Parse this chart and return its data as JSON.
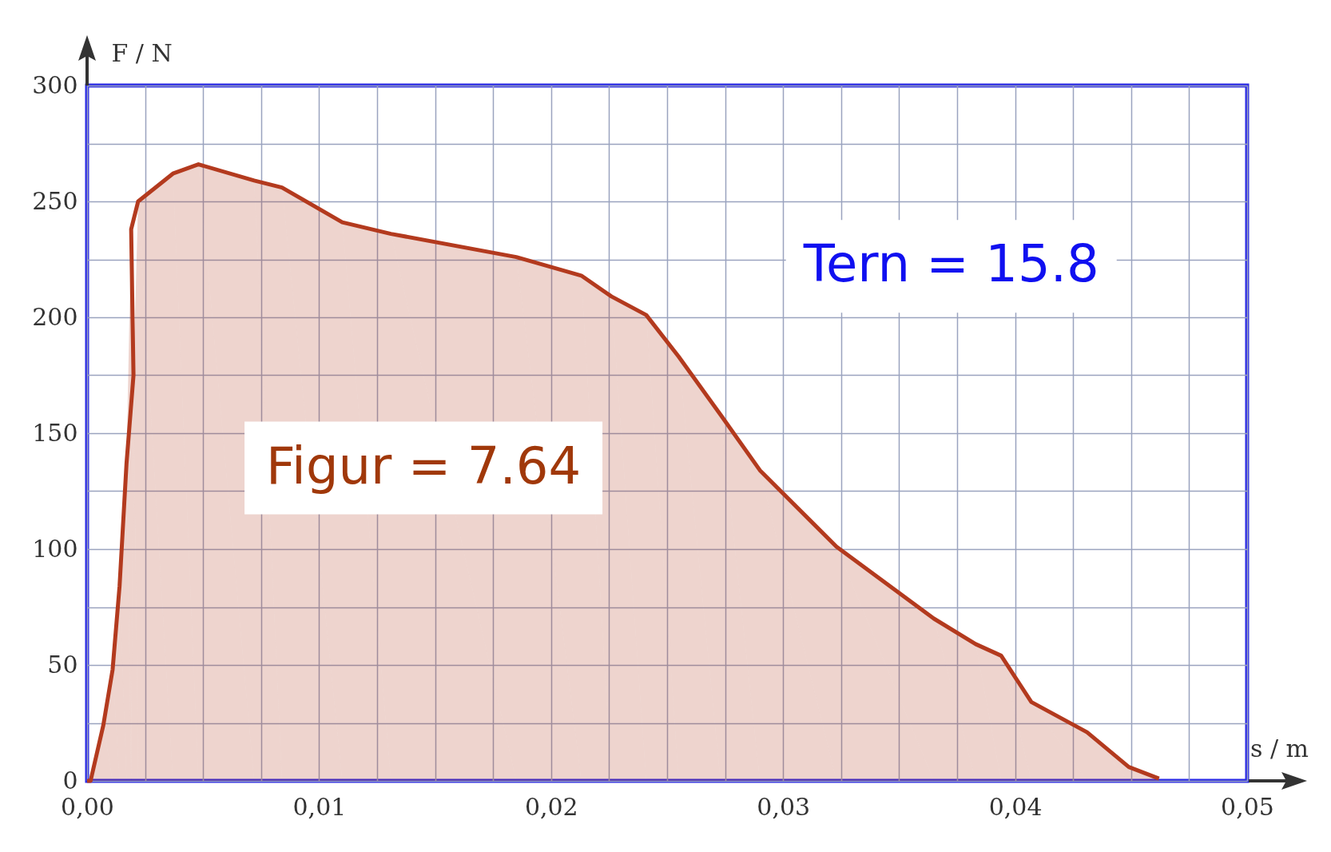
{
  "chart_data": {
    "type": "area",
    "xlabel": "s / m",
    "ylabel": "F / N",
    "x": [
      0,
      0.00015,
      0.0007,
      0.0011,
      0.0014,
      0.0017,
      0.002,
      0.0019,
      0.0022,
      0.0037,
      0.0048,
      0.0072,
      0.0084,
      0.011,
      0.0131,
      0.0185,
      0.0213,
      0.0226,
      0.0241,
      0.0255,
      0.0273,
      0.029,
      0.0323,
      0.0365,
      0.0383,
      0.0394,
      0.0407,
      0.0431,
      0.0449,
      0.0462
    ],
    "series": [
      {
        "color": "#b33a1e",
        "values": [
          0,
          0,
          24,
          48,
          84,
          137,
          175,
          238,
          250,
          262,
          266,
          259,
          256,
          241,
          236,
          226,
          218,
          209,
          201,
          183,
          158,
          134,
          101,
          70,
          59,
          54,
          34,
          21,
          6,
          1
        ]
      }
    ],
    "xlim": [
      0,
      0.05
    ],
    "ylim": [
      0,
      300
    ],
    "xticks": [
      {
        "value": 0,
        "label": "0,00"
      },
      {
        "value": 0.0025,
        "label": null
      },
      {
        "value": 0.005,
        "label": null
      },
      {
        "value": 0.0075,
        "label": null
      },
      {
        "value": 0.01,
        "label": "0,01"
      },
      {
        "value": 0.0125,
        "label": null
      },
      {
        "value": 0.015,
        "label": null
      },
      {
        "value": 0.0175,
        "label": null
      },
      {
        "value": 0.02,
        "label": "0,02"
      },
      {
        "value": 0.0225,
        "label": null
      },
      {
        "value": 0.025,
        "label": null
      },
      {
        "value": 0.0275,
        "label": null
      },
      {
        "value": 0.03,
        "label": "0,03"
      },
      {
        "value": 0.0325,
        "label": null
      },
      {
        "value": 0.035,
        "label": null
      },
      {
        "value": 0.0375,
        "label": null
      },
      {
        "value": 0.04,
        "label": "0,04"
      },
      {
        "value": 0.0425,
        "label": null
      },
      {
        "value": 0.045,
        "label": null
      },
      {
        "value": 0.0475,
        "label": null
      },
      {
        "value": 0.05,
        "label": "0,05"
      }
    ],
    "yticks": [
      0,
      {
        "value": 25,
        "label": null
      },
      50,
      {
        "value": 75,
        "label": null
      },
      100,
      {
        "value": 125,
        "label": null
      },
      150,
      {
        "value": 175,
        "label": null
      },
      200,
      {
        "value": 225,
        "label": null
      },
      250,
      {
        "value": 275,
        "label": null
      },
      300
    ],
    "grid": true,
    "annotations": [
      "Figur = 7.64",
      "Tern = 15.8"
    ]
  }
}
